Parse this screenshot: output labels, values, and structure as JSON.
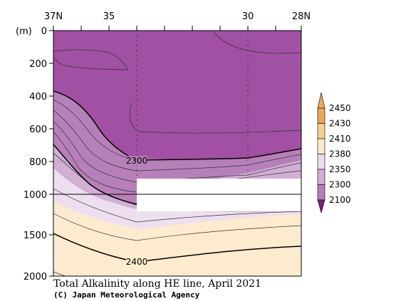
{
  "chart_data": {
    "type": "heatmap",
    "title": "Total Alkalinity along HE line, April 2021",
    "credit": "(C) Japan Meteorological Agency",
    "ylabel": "(m)",
    "x_ticks": [
      "37N",
      "35",
      "30",
      "28N"
    ],
    "x_tick_values": [
      37,
      35,
      30,
      28
    ],
    "x_range": [
      37,
      28
    ],
    "y_ticks": [
      "0",
      "200",
      "400",
      "600",
      "800",
      "1000",
      "1500",
      "2000"
    ],
    "y_tick_values": [
      0,
      200,
      400,
      600,
      800,
      1000,
      1500,
      2000
    ],
    "y_range": [
      0,
      2000
    ],
    "y_scale": "piecewise: linear 0-1000 m (upper), linear 1000-2000 m (lower, compressed)",
    "contour_labels": [
      {
        "text": "2300",
        "lat": 35.0,
        "depth": 790
      },
      {
        "text": "2400",
        "lat": 35.0,
        "depth": 1680
      }
    ],
    "no_data_region": {
      "lat_from": 35.0,
      "lat_to": 28,
      "depth_from": 910,
      "depth_to": 1150
    },
    "colorbar": {
      "levels": [
        "2100",
        "2300",
        "2350",
        "2380",
        "2410",
        "2430",
        "2450"
      ],
      "colors": [
        "#9b4b9b",
        "#b77db9",
        "#d3acd5",
        "#ecdcee",
        "#fbead0",
        "#f6cf93",
        "#eca75a"
      ],
      "low_extend_color": "#7c1e7c",
      "high_extend_color": "#eca75a"
    },
    "layers": [
      {
        "min": 2100,
        "max": 2300,
        "color": "#a150a3"
      },
      {
        "min": 2300,
        "max": 2350,
        "color": "#b880ba"
      },
      {
        "min": 2350,
        "max": 2380,
        "color": "#d2afd4"
      },
      {
        "min": 2380,
        "max": 2410,
        "color": "#eddfef"
      },
      {
        "min": 2410,
        "max": 2430,
        "color": "#fcebcf"
      }
    ]
  }
}
